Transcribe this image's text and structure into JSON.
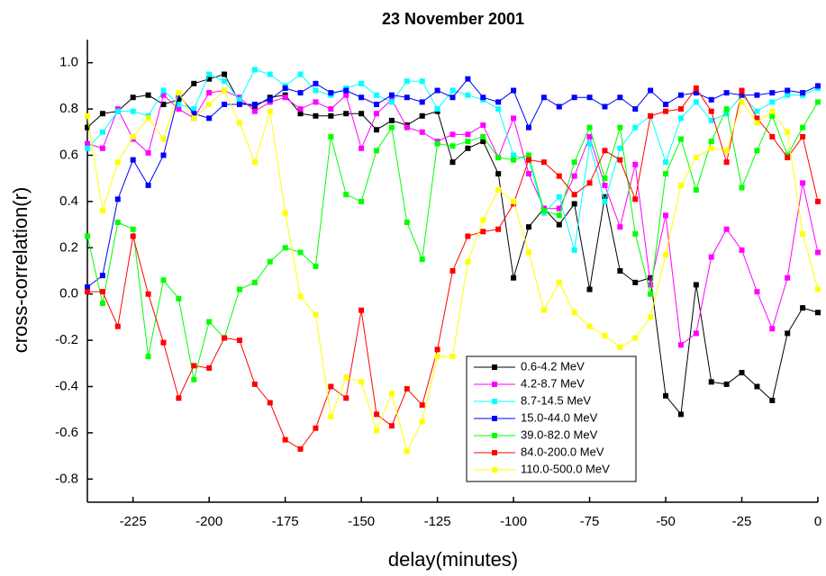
{
  "chart_data": {
    "type": "line",
    "title": "23 November 2001",
    "x_label": "delay(minutes)",
    "y_label": "cross-correlation(r)",
    "x": [
      -240,
      -235,
      -230,
      -225,
      -220,
      -215,
      -210,
      -205,
      -200,
      -195,
      -190,
      -185,
      -180,
      -175,
      -170,
      -165,
      -160,
      -155,
      -150,
      -145,
      -140,
      -135,
      -130,
      -125,
      -120,
      -115,
      -110,
      -105,
      -100,
      -95,
      -90,
      -85,
      -80,
      -75,
      -70,
      -65,
      -60,
      -55,
      -50,
      -45,
      -40,
      -35,
      -30,
      -25,
      -20,
      -15,
      -10,
      -5,
      0
    ],
    "xlim": [
      -240,
      0
    ],
    "xticks": [
      -225,
      -200,
      -175,
      -150,
      -125,
      -100,
      -75,
      -50,
      -25,
      0
    ],
    "ylim": [
      -0.9,
      1.1
    ],
    "yticks": [
      {
        "value": 1.0,
        "label": "1.0"
      },
      0.8,
      0.6,
      0.4,
      0.2,
      {
        "value": 0,
        "label": "0.0"
      },
      -0.2,
      -0.4,
      -0.6,
      -0.8
    ],
    "grid": false,
    "legend": "lower-right",
    "series": [
      {
        "name": "0.6-4.2 MeV",
        "color": "#000000",
        "values": [
          0.72,
          0.78,
          0.79,
          0.85,
          0.86,
          0.82,
          0.84,
          0.91,
          0.93,
          0.95,
          0.83,
          0.81,
          0.85,
          0.86,
          0.78,
          0.77,
          0.77,
          0.78,
          0.78,
          0.71,
          0.75,
          0.73,
          0.77,
          0.79,
          0.57,
          0.63,
          0.66,
          0.52,
          0.07,
          0.29,
          0.37,
          0.3,
          0.39,
          0.02,
          0.42,
          0.1,
          0.05,
          0.07,
          -0.44,
          -0.52,
          0.04,
          -0.38,
          -0.39,
          -0.34,
          -0.4,
          -0.46,
          -0.17,
          -0.06,
          -0.08
        ]
      },
      {
        "name": "4.2-8.7 MeV",
        "color": "#ff00ff",
        "values": [
          0.65,
          0.63,
          0.8,
          0.67,
          0.61,
          0.86,
          0.8,
          0.76,
          0.87,
          0.88,
          0.85,
          0.79,
          0.83,
          0.85,
          0.8,
          0.83,
          0.8,
          0.86,
          0.63,
          0.78,
          0.84,
          0.72,
          0.7,
          0.66,
          0.69,
          0.69,
          0.73,
          0.59,
          0.76,
          0.52,
          0.37,
          0.37,
          0.51,
          0.68,
          0.47,
          0.29,
          0.56,
          0.04,
          0.34,
          -0.22,
          -0.17,
          0.16,
          0.28,
          0.19,
          0.01,
          -0.15,
          0.07,
          0.48,
          0.18
        ]
      },
      {
        "name": "8.7-14.5 MeV",
        "color": "#00ffff",
        "values": [
          0.63,
          0.7,
          0.79,
          0.79,
          0.77,
          0.88,
          0.82,
          0.8,
          0.95,
          0.92,
          0.84,
          0.97,
          0.95,
          0.9,
          0.95,
          0.88,
          0.86,
          0.89,
          0.91,
          0.86,
          0.83,
          0.92,
          0.92,
          0.8,
          0.88,
          0.86,
          0.84,
          0.8,
          0.6,
          0.58,
          0.35,
          0.42,
          0.19,
          0.65,
          0.4,
          0.63,
          0.72,
          0.77,
          0.57,
          0.76,
          0.83,
          0.75,
          0.78,
          0.86,
          0.79,
          0.83,
          0.86,
          0.86,
          0.89
        ]
      },
      {
        "name": "15.0-44.0 MeV",
        "color": "#0000ff",
        "values": [
          0.03,
          0.08,
          0.41,
          0.58,
          0.47,
          0.6,
          0.86,
          0.78,
          0.76,
          0.82,
          0.82,
          0.82,
          0.84,
          0.89,
          0.87,
          0.91,
          0.87,
          0.88,
          0.85,
          0.82,
          0.86,
          0.85,
          0.83,
          0.88,
          0.85,
          0.93,
          0.85,
          0.83,
          0.88,
          0.72,
          0.85,
          0.81,
          0.85,
          0.85,
          0.81,
          0.85,
          0.8,
          0.88,
          0.82,
          0.86,
          0.87,
          0.84,
          0.87,
          0.86,
          0.86,
          0.87,
          0.88,
          0.87,
          0.9
        ]
      },
      {
        "name": "39.0-82.0 MeV",
        "color": "#00ff00",
        "values": [
          0.25,
          -0.04,
          0.31,
          0.28,
          -0.27,
          0.06,
          -0.02,
          -0.37,
          -0.12,
          -0.19,
          0.02,
          0.05,
          0.14,
          0.2,
          0.18,
          0.12,
          0.68,
          0.43,
          0.4,
          0.62,
          0.72,
          0.31,
          0.15,
          0.65,
          0.64,
          0.66,
          0.68,
          0.59,
          0.58,
          0.6,
          0.36,
          0.34,
          0.57,
          0.72,
          0.5,
          0.72,
          0.26,
          0.0,
          0.52,
          0.67,
          0.45,
          0.66,
          0.8,
          0.46,
          0.62,
          0.77,
          0.6,
          0.72,
          0.83
        ]
      },
      {
        "name": "84.0-200.0 MeV",
        "color": "#ff0000",
        "values": [
          0.01,
          0.01,
          -0.14,
          0.25,
          0.0,
          -0.21,
          -0.45,
          -0.31,
          -0.32,
          -0.19,
          -0.2,
          -0.39,
          -0.47,
          -0.63,
          -0.67,
          -0.58,
          -0.4,
          -0.45,
          -0.07,
          -0.52,
          -0.57,
          -0.41,
          -0.48,
          -0.24,
          0.1,
          0.25,
          0.27,
          0.28,
          0.39,
          0.58,
          0.57,
          0.51,
          0.43,
          0.48,
          0.62,
          0.58,
          0.41,
          0.77,
          0.79,
          0.8,
          0.89,
          0.79,
          0.57,
          0.88,
          0.76,
          0.68,
          0.59,
          0.68,
          0.4
        ]
      },
      {
        "name": "110.0-500.0 MeV",
        "color": "#ffff00",
        "values": [
          0.77,
          0.36,
          0.57,
          0.68,
          0.76,
          0.67,
          0.87,
          0.76,
          0.82,
          0.88,
          0.74,
          0.57,
          0.79,
          0.35,
          -0.01,
          -0.09,
          -0.53,
          -0.36,
          -0.38,
          -0.59,
          -0.43,
          -0.68,
          -0.55,
          -0.27,
          -0.27,
          0.14,
          0.32,
          0.45,
          0.4,
          0.18,
          -0.07,
          0.05,
          -0.08,
          -0.14,
          -0.18,
          -0.23,
          -0.19,
          -0.1,
          0.17,
          0.47,
          0.59,
          0.63,
          0.62,
          0.83,
          0.74,
          0.79,
          0.7,
          0.26,
          0.02
        ]
      }
    ]
  }
}
